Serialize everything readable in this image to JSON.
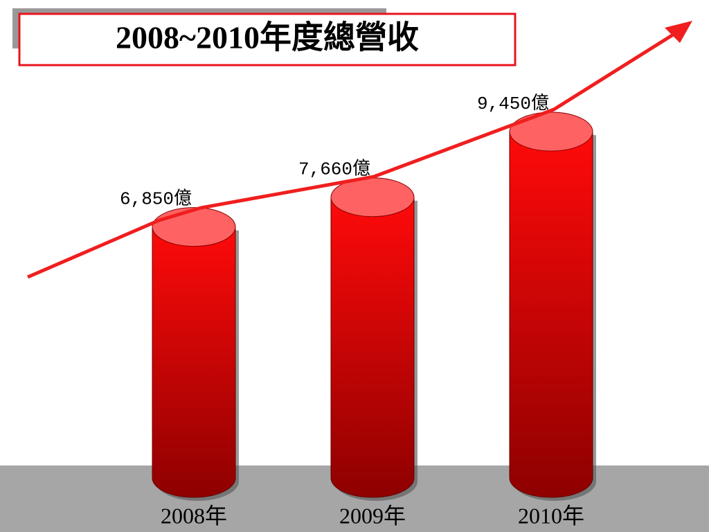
{
  "chart_data": {
    "type": "bar",
    "title": "2008~2010年度總營收",
    "categories": [
      "2008年",
      "2009年",
      "2010年"
    ],
    "values": [
      6850,
      7660,
      9450
    ],
    "value_labels": [
      "6,850億",
      "7,660億",
      "9,450億"
    ],
    "color": "#ff0000"
  }
}
